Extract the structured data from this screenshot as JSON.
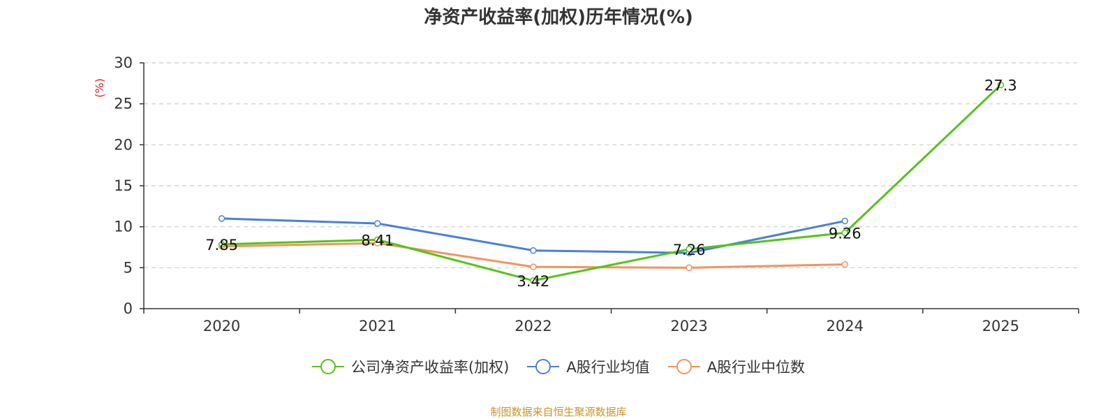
{
  "chart_data": {
    "type": "line",
    "title": "净资产收益率(加权)历年情况(%)",
    "xlabel": "",
    "ylabel": "(%)",
    "ylim": [
      0,
      30
    ],
    "yticks": [
      0,
      5,
      10,
      15,
      20,
      25,
      30
    ],
    "grid": true,
    "legend_position": "bottom",
    "categories": [
      "2020",
      "2021",
      "2022",
      "2023",
      "2024",
      "2025"
    ],
    "series": [
      {
        "name": "公司净资产收益率(加权)",
        "color": "#52c41a",
        "values": [
          7.85,
          8.41,
          3.42,
          7.26,
          9.26,
          27.3
        ],
        "labels": [
          "7.85",
          "8.41",
          "3.42",
          "7.26",
          "9.26",
          "27.3"
        ]
      },
      {
        "name": "A股行业均值",
        "color": "#4a7fdb",
        "values": [
          11.0,
          10.4,
          7.1,
          6.8,
          10.7,
          null
        ]
      },
      {
        "name": "A股行业中位数",
        "color": "#f5925e",
        "values": [
          7.6,
          8.0,
          5.1,
          5.0,
          5.4,
          null
        ]
      }
    ]
  },
  "source": "制图数据来自恒生聚源数据库",
  "colors": {
    "axis": "#333333",
    "grid": "#cccccc",
    "ylabel": "#e02020",
    "source": "#c7952a"
  }
}
